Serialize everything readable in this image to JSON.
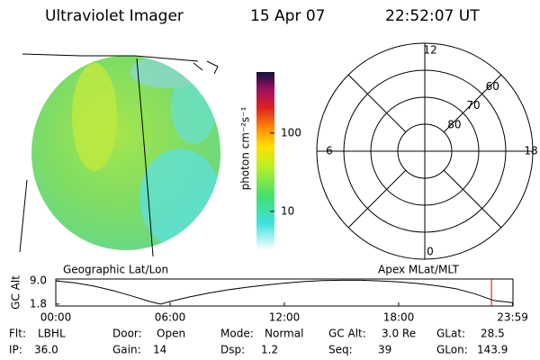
{
  "header": {
    "title": "Ultraviolet Imager",
    "date": "15 Apr 07",
    "time": "22:52:07 UT"
  },
  "colorbar": {
    "label": "photon cm⁻²s⁻¹",
    "log": true,
    "lim": [
      3.2,
      600
    ],
    "ticks": [
      10,
      100
    ]
  },
  "polar": {
    "rlim": [
      90,
      50
    ],
    "lat_ticks": [
      80,
      70,
      60
    ],
    "mlt_ticks": [
      0,
      6,
      12,
      18
    ]
  },
  "plot": {
    "title_left": "Geographic Lat/Lon",
    "title_right": "Apex MLat/MLT",
    "ylabel": "GC Alt",
    "ylim": [
      1.2,
      9.6
    ],
    "yticks": [
      1.8,
      {
        "value": 9,
        "label": "9.0"
      }
    ],
    "xlim": [
      0,
      24
    ],
    "xticks": [
      {
        "value": 0,
        "label": "00:00"
      },
      {
        "value": 6,
        "label": "06:00"
      },
      {
        "value": 12,
        "label": "12:00"
      },
      {
        "value": 18,
        "label": "18:00"
      },
      {
        "value": 23.98,
        "label": "23:59"
      }
    ],
    "x": [
      0,
      1,
      2,
      3,
      4,
      5,
      5.5,
      6,
      7,
      8,
      9,
      10,
      11,
      12,
      13,
      14,
      15,
      16,
      17,
      18,
      19,
      20,
      21,
      22,
      23,
      24
    ],
    "values": [
      9.0,
      8.4,
      7.4,
      6.0,
      4.3,
      2.5,
      1.8,
      2.6,
      4.0,
      5.2,
      6.2,
      7.0,
      7.7,
      8.3,
      8.8,
      9.1,
      9.2,
      9.2,
      9.0,
      8.7,
      8.2,
      7.5,
      6.6,
      5.0,
      2.9,
      2.2
    ],
    "current_time": 22.87,
    "current_color": "#cc0000"
  },
  "footer": [
    [
      [
        "Flt:",
        "LBHL"
      ],
      [
        "Door:",
        "Open"
      ],
      [
        "Mode:",
        "Normal"
      ],
      [
        "GC Alt:",
        "3.0 Re"
      ],
      [
        "GLat:",
        "28.5"
      ]
    ],
    [
      [
        "IP:",
        "36.0"
      ],
      [
        "Gain:",
        "14"
      ],
      [
        "Dsp:",
        "1.2"
      ],
      [
        "Seq:",
        "39"
      ],
      [
        "GLon:",
        "143.9"
      ]
    ]
  ]
}
